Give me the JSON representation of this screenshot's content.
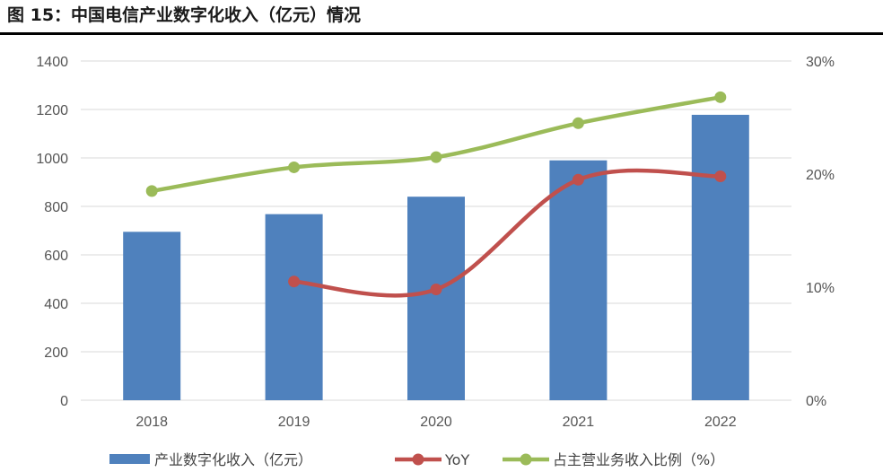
{
  "header": {
    "title": "图 15：中国电信产业数字化收入（亿元）情况"
  },
  "chart_data": {
    "type": "bar",
    "categories": [
      "2018",
      "2019",
      "2020",
      "2021",
      "2022"
    ],
    "series": [
      {
        "name": "产业数字化收入（亿元）",
        "kind": "bar",
        "axis": "left",
        "color": "#4f81bd",
        "values": [
          695,
          768,
          840,
          990,
          1178
        ]
      },
      {
        "name": "YoY",
        "kind": "line",
        "axis": "right",
        "color": "#c0504d",
        "values": [
          null,
          10.5,
          9.8,
          19.5,
          19.8
        ]
      },
      {
        "name": "占主营业务收入比例（%）",
        "kind": "line",
        "axis": "right",
        "color": "#9bbb59",
        "values": [
          18.5,
          20.6,
          21.5,
          24.5,
          26.8
        ]
      }
    ],
    "ylim_left": [
      0,
      1400
    ],
    "yticks_left": [
      "0",
      "200",
      "400",
      "600",
      "800",
      "1000",
      "1200",
      "1400"
    ],
    "ylim_right": [
      0,
      30
    ],
    "yticks_right": [
      "0%",
      "10%",
      "20%",
      "30%"
    ],
    "grid": true,
    "legend_position": "bottom"
  }
}
